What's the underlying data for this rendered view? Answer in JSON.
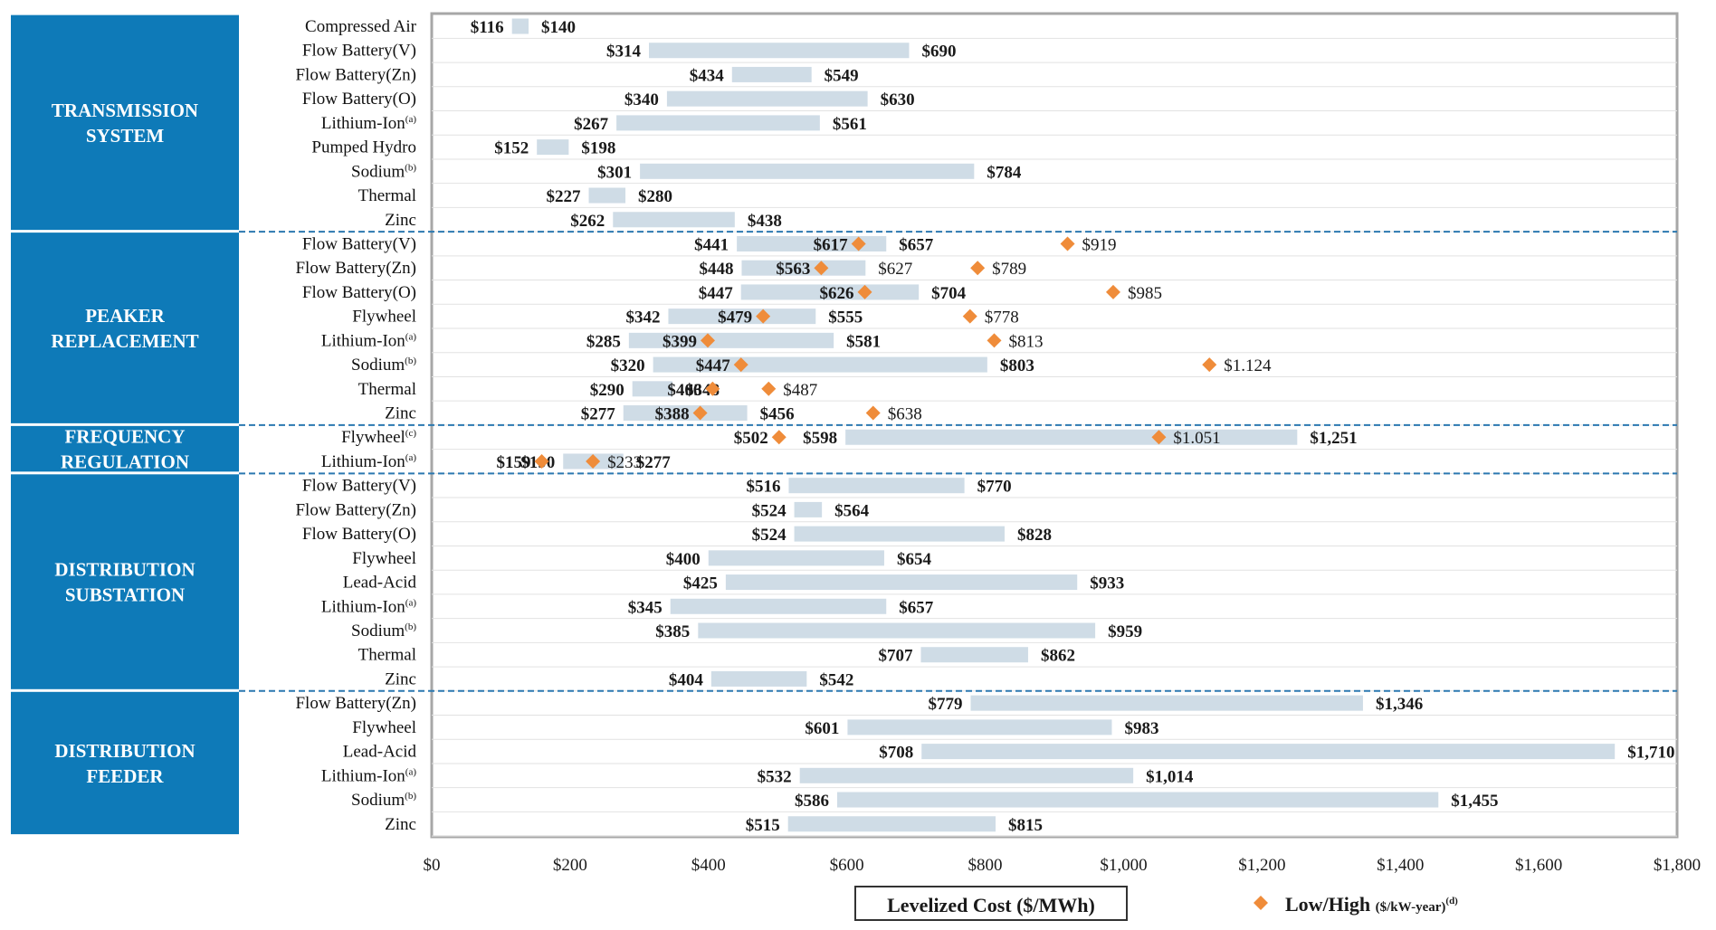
{
  "chart_data": {
    "type": "bar",
    "x_axis": {
      "min": 0,
      "max": 1800,
      "ticks": [
        "$0",
        "$200",
        "$400",
        "$600",
        "$800",
        "$1,000",
        "$1,200",
        "$1,400",
        "$1,600",
        "$1,800"
      ],
      "tick_values": [
        0,
        200,
        400,
        600,
        800,
        1000,
        1200,
        1400,
        1600,
        1800
      ]
    },
    "legend": {
      "bar_label": "Levelized Cost ($/MWh)",
      "marker_label": "Low/High",
      "marker_unit": "($/kW-year)",
      "marker_sup": "(d)",
      "placement": "bottom"
    },
    "colors": {
      "segment": "#0e7ab8",
      "bar": "#cfdce6",
      "marker": "#ef8c3a",
      "divider": "#2b78b0"
    },
    "segments": [
      {
        "label_lines": [
          "TRANSMISSION",
          "SYSTEM"
        ],
        "rows": [
          {
            "label": "Compressed Air",
            "sup": "",
            "low": 116,
            "high": 140,
            "low_label": "$116",
            "high_label": "$140",
            "markers": []
          },
          {
            "label": "Flow Battery(V)",
            "sup": "",
            "low": 314,
            "high": 690,
            "low_label": "$314",
            "high_label": "$690",
            "markers": []
          },
          {
            "label": "Flow Battery(Zn)",
            "sup": "",
            "low": 434,
            "high": 549,
            "low_label": "$434",
            "high_label": "$549",
            "markers": []
          },
          {
            "label": "Flow Battery(O)",
            "sup": "",
            "low": 340,
            "high": 630,
            "low_label": "$340",
            "high_label": "$630",
            "markers": []
          },
          {
            "label": "Lithium-Ion",
            "sup": "(a)",
            "low": 267,
            "high": 561,
            "low_label": "$267",
            "high_label": "$561",
            "markers": []
          },
          {
            "label": "Pumped Hydro",
            "sup": "",
            "low": 152,
            "high": 198,
            "low_label": "$152",
            "high_label": "$198",
            "markers": []
          },
          {
            "label": "Sodium",
            "sup": "(b)",
            "low": 301,
            "high": 784,
            "low_label": "$301",
            "high_label": "$784",
            "markers": []
          },
          {
            "label": "Thermal",
            "sup": "",
            "low": 227,
            "high": 280,
            "low_label": "$227",
            "high_label": "$280",
            "markers": []
          },
          {
            "label": "Zinc",
            "sup": "",
            "low": 262,
            "high": 438,
            "low_label": "$262",
            "high_label": "$438",
            "markers": []
          }
        ]
      },
      {
        "label_lines": [
          "PEAKER",
          "REPLACEMENT"
        ],
        "rows": [
          {
            "label": "Flow Battery(V)",
            "sup": "",
            "low": 441,
            "high": 657,
            "low_label": "$441",
            "high_label": "$657",
            "markers": [
              {
                "value": 617,
                "label": "$617"
              },
              {
                "value": 919,
                "label": "$919"
              }
            ]
          },
          {
            "label": "Flow Battery(Zn)",
            "sup": "",
            "low": 448,
            "high": 627,
            "low_label": "$448",
            "high_label": "",
            "markers": [
              {
                "value": 563,
                "label": "$563"
              },
              {
                "value": 789,
                "label": "$789"
              }
            ],
            "extra_label": "$627"
          },
          {
            "label": "Flow Battery(O)",
            "sup": "",
            "low": 447,
            "high": 704,
            "low_label": "$447",
            "high_label": "$704",
            "markers": [
              {
                "value": 626,
                "label": "$626"
              },
              {
                "value": 985,
                "label": "$985"
              }
            ]
          },
          {
            "label": "Flywheel",
            "sup": "",
            "low": 342,
            "high": 555,
            "low_label": "$342",
            "high_label": "$555",
            "markers": [
              {
                "value": 479,
                "label": "$479"
              },
              {
                "value": 778,
                "label": "$778"
              }
            ]
          },
          {
            "label": "Lithium-Ion",
            "sup": "(a)",
            "low": 285,
            "high": 581,
            "low_label": "$285",
            "high_label": "$581",
            "markers": [
              {
                "value": 399,
                "label": "$399"
              },
              {
                "value": 813,
                "label": "$813"
              }
            ]
          },
          {
            "label": "Sodium",
            "sup": "(b)",
            "low": 320,
            "high": 803,
            "low_label": "$320",
            "high_label": "$803",
            "markers": [
              {
                "value": 447,
                "label": "$447"
              },
              {
                "value": 1124,
                "label": "$1.124"
              }
            ]
          },
          {
            "label": "Thermal",
            "sup": "",
            "low": 290,
            "high": 348,
            "low_label": "$290",
            "high_label": "$348",
            "markers": [
              {
                "value": 406,
                "label": "$406"
              },
              {
                "value": 487,
                "label": "$487"
              }
            ]
          },
          {
            "label": "Zinc",
            "sup": "",
            "low": 277,
            "high": 456,
            "low_label": "$277",
            "high_label": "$456",
            "markers": [
              {
                "value": 388,
                "label": "$388"
              },
              {
                "value": 638,
                "label": "$638"
              }
            ]
          }
        ]
      },
      {
        "label_lines": [
          "FREQUENCY",
          "REGULATION"
        ],
        "rows": [
          {
            "label": "Flywheel",
            "sup": "(c)",
            "low": 598,
            "high": 1251,
            "low_label": "$598",
            "high_label": "$1,251",
            "markers": [
              {
                "value": 502,
                "label": "$502"
              },
              {
                "value": 1051,
                "label": "$1.051"
              }
            ]
          },
          {
            "label": "Lithium-Ion",
            "sup": "(a)",
            "low": 190,
            "high": 277,
            "low_label": "$190",
            "high_label": "$277",
            "markers": [
              {
                "value": 159,
                "label": "$159"
              },
              {
                "value": 233,
                "label": "$233"
              }
            ]
          }
        ]
      },
      {
        "label_lines": [
          "DISTRIBUTION",
          "SUBSTATION"
        ],
        "rows": [
          {
            "label": "Flow Battery(V)",
            "sup": "",
            "low": 516,
            "high": 770,
            "low_label": "$516",
            "high_label": "$770",
            "markers": []
          },
          {
            "label": "Flow Battery(Zn)",
            "sup": "",
            "low": 524,
            "high": 564,
            "low_label": "$524",
            "high_label": "$564",
            "markers": []
          },
          {
            "label": "Flow Battery(O)",
            "sup": "",
            "low": 524,
            "high": 828,
            "low_label": "$524",
            "high_label": "$828",
            "markers": []
          },
          {
            "label": "Flywheel",
            "sup": "",
            "low": 400,
            "high": 654,
            "low_label": "$400",
            "high_label": "$654",
            "markers": []
          },
          {
            "label": "Lead-Acid",
            "sup": "",
            "low": 425,
            "high": 933,
            "low_label": "$425",
            "high_label": "$933",
            "markers": []
          },
          {
            "label": "Lithium-Ion",
            "sup": "(a)",
            "low": 345,
            "high": 657,
            "low_label": "$345",
            "high_label": "$657",
            "markers": []
          },
          {
            "label": "Sodium",
            "sup": "(b)",
            "low": 385,
            "high": 959,
            "low_label": "$385",
            "high_label": "$959",
            "markers": []
          },
          {
            "label": "Thermal",
            "sup": "",
            "low": 707,
            "high": 862,
            "low_label": "$707",
            "high_label": "$862",
            "markers": []
          },
          {
            "label": "Zinc",
            "sup": "",
            "low": 404,
            "high": 542,
            "low_label": "$404",
            "high_label": "$542",
            "markers": []
          }
        ]
      },
      {
        "label_lines": [
          "DISTRIBUTION",
          "FEEDER"
        ],
        "rows": [
          {
            "label": "Flow Battery(Zn)",
            "sup": "",
            "low": 779,
            "high": 1346,
            "low_label": "$779",
            "high_label": "$1,346",
            "markers": []
          },
          {
            "label": "Flywheel",
            "sup": "",
            "low": 601,
            "high": 983,
            "low_label": "$601",
            "high_label": "$983",
            "markers": []
          },
          {
            "label": "Lead-Acid",
            "sup": "",
            "low": 708,
            "high": 1710,
            "low_label": "$708",
            "high_label": "$1,710",
            "markers": []
          },
          {
            "label": "Lithium-Ion",
            "sup": "(a)",
            "low": 532,
            "high": 1014,
            "low_label": "$532",
            "high_label": "$1,014",
            "markers": []
          },
          {
            "label": "Sodium",
            "sup": "(b)",
            "low": 586,
            "high": 1455,
            "low_label": "$586",
            "high_label": "$1,455",
            "markers": []
          },
          {
            "label": "Zinc",
            "sup": "",
            "low": 515,
            "high": 815,
            "low_label": "$515",
            "high_label": "$815",
            "markers": []
          }
        ]
      }
    ]
  }
}
